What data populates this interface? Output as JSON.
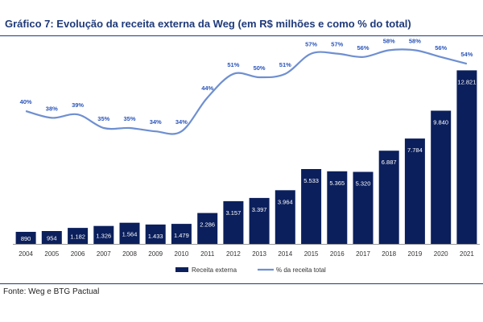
{
  "title": "Gráfico 7: Evolução da receita externa da Weg (em R$ milhões e como % do total)",
  "source": "Fonte: Weg e BTG Pactual",
  "colors": {
    "bar": "#0b1f5c",
    "line": "#6e8fd1",
    "title": "#1f3a7a",
    "bar_label": "#ffffff",
    "line_label": "#2b55b8",
    "axis_text": "#333333"
  },
  "chart_data": {
    "type": "bar+line",
    "categories": [
      "2004",
      "2005",
      "2006",
      "2007",
      "2008",
      "2009",
      "2010",
      "2011",
      "2012",
      "2013",
      "2014",
      "2015",
      "2016",
      "2017",
      "2018",
      "2019",
      "2020",
      "2021"
    ],
    "series": [
      {
        "name": "Receita externa",
        "type": "bar",
        "axis": "left",
        "values": [
          890,
          954,
          1182,
          1326,
          1564,
          1433,
          1479,
          2286,
          3157,
          3397,
          3964,
          5533,
          5365,
          5320,
          6887,
          7784,
          9840,
          12821
        ]
      },
      {
        "name": "% da receita total",
        "type": "line",
        "axis": "right",
        "values": [
          40,
          38,
          39,
          35,
          35,
          34,
          34,
          44,
          51,
          50,
          51,
          57,
          57,
          56,
          58,
          58,
          56,
          54
        ]
      }
    ],
    "bar_labels": [
      "890",
      "954",
      "1.182",
      "1.326",
      "1.564",
      "1.433",
      "1.479",
      "2.286",
      "3.157",
      "3.397",
      "3.964",
      "5.533",
      "5.365",
      "5.320",
      "6.887",
      "7.784",
      "9.840",
      "12.821"
    ],
    "line_labels": [
      "40%",
      "38%",
      "39%",
      "35%",
      "35%",
      "34%",
      "34%",
      "44%",
      "51%",
      "50%",
      "51%",
      "57%",
      "57%",
      "56%",
      "58%",
      "58%",
      "56%",
      "54%"
    ],
    "legend": [
      "Receita externa",
      "% da receita total"
    ],
    "legend_position": "bottom",
    "ylim_left": [
      0,
      13500
    ],
    "ylim_right": [
      0,
      100
    ],
    "grid": false
  }
}
